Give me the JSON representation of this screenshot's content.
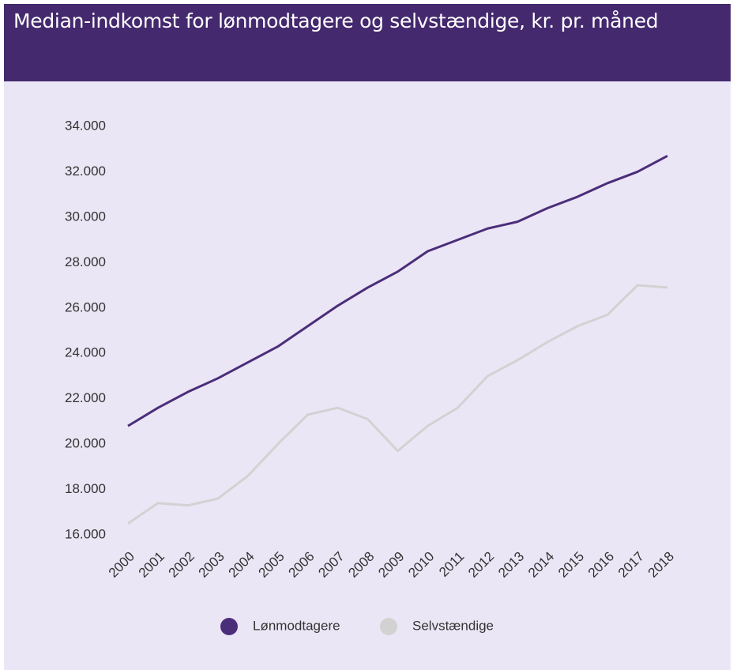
{
  "chart_data": {
    "type": "line",
    "title": "Median-indkomst for lønmodtagere og selvstændige, kr. pr. måned",
    "categories": [
      "2000",
      "2001",
      "2002",
      "2003",
      "2004",
      "2005",
      "2006",
      "2007",
      "2008",
      "2009",
      "2010",
      "2011",
      "2012",
      "2013",
      "2014",
      "2015",
      "2016",
      "2017",
      "2018"
    ],
    "series": [
      {
        "name": "Lønmodtagere",
        "color": "#4b2e7a",
        "values": [
          20800,
          21600,
          22300,
          22900,
          23600,
          24300,
          25200,
          26100,
          26900,
          27600,
          28500,
          29000,
          29500,
          29800,
          30400,
          30900,
          31500,
          32000,
          32700
        ]
      },
      {
        "name": "Selvstændige",
        "color": "#d2d2d2",
        "values": [
          16500,
          17400,
          17300,
          17600,
          18600,
          20000,
          21300,
          21600,
          21100,
          19700,
          20800,
          21600,
          23000,
          23700,
          24500,
          25200,
          25700,
          27000,
          26900
        ]
      }
    ],
    "ylim": [
      16000,
      34000
    ],
    "yticks": [
      {
        "value": 16000,
        "label": "16.000"
      },
      {
        "value": 18000,
        "label": "18.000"
      },
      {
        "value": 20000,
        "label": "20.000"
      },
      {
        "value": 22000,
        "label": "22.000"
      },
      {
        "value": 24000,
        "label": "24.000"
      },
      {
        "value": 26000,
        "label": "26.000"
      },
      {
        "value": 28000,
        "label": "28.000"
      },
      {
        "value": 30000,
        "label": "30.000"
      },
      {
        "value": 32000,
        "label": "32.000"
      },
      {
        "value": 34000,
        "label": "34.000"
      }
    ],
    "grid": false,
    "legend": "bottom"
  }
}
